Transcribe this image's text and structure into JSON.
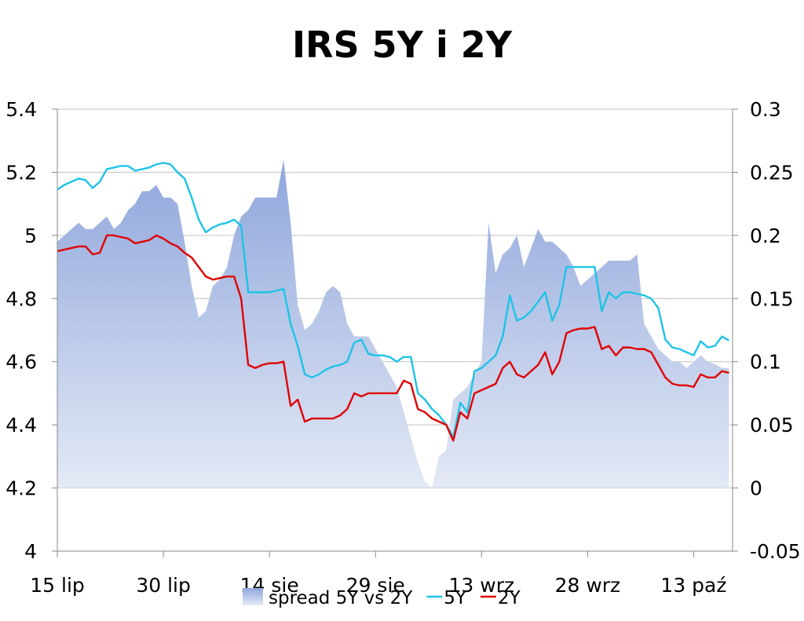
{
  "chart_data": {
    "type": "line",
    "title": "IRS 5Y i 2Y",
    "x_tick_labels": [
      "15 lip",
      "30 lip",
      "14 sie",
      "29 sie",
      "13 wrz",
      "28 wrz",
      "13 paź"
    ],
    "x_tick_days": [
      0,
      15,
      30,
      45,
      60,
      75,
      90
    ],
    "x_range_days": [
      0,
      95.5
    ],
    "y_left": {
      "min": 4,
      "max": 5.4,
      "step": 0.2,
      "tick_labels": [
        "4",
        "4.2",
        "4.4",
        "4.6",
        "4.8",
        "5",
        "5.2",
        "5.4"
      ]
    },
    "y_right": {
      "min": -0.05,
      "max": 0.3,
      "step": 0.05,
      "tick_labels": [
        "-0.05",
        "0",
        "0.05",
        "0.1",
        "0.15",
        "0.2",
        "0.25",
        "0.3"
      ]
    },
    "grid": "horizontal",
    "legend_position": "bottom",
    "x_days": [
      0,
      1,
      2,
      3,
      4,
      5,
      6,
      7,
      8,
      9,
      10,
      11,
      12,
      13,
      14,
      15,
      16,
      17,
      18,
      19,
      20,
      21,
      22,
      23,
      24,
      25,
      26,
      27,
      28,
      29,
      30,
      31,
      32,
      33,
      34,
      35,
      36,
      37,
      38,
      39,
      40,
      41,
      42,
      43,
      44,
      45,
      46,
      47,
      48,
      49,
      50,
      51,
      52,
      53,
      54,
      55,
      56,
      57,
      58,
      59,
      60,
      61,
      62,
      63,
      64,
      65,
      66,
      67,
      68,
      69,
      70,
      71,
      72,
      73,
      74,
      75,
      76,
      77,
      78,
      79,
      80,
      81,
      82,
      83,
      84,
      85,
      86,
      87,
      88,
      89,
      90,
      91,
      92,
      93,
      94,
      95
    ],
    "series": [
      {
        "name": "spread 5Y vs 2Y",
        "type": "area",
        "axis": "right",
        "color_top": "#8fa6dc",
        "color_bottom": "#e3e9f5",
        "values": [
          0.195,
          0.2,
          0.205,
          0.21,
          0.205,
          0.205,
          0.21,
          0.215,
          0.205,
          0.21,
          0.22,
          0.225,
          0.235,
          0.235,
          0.24,
          0.23,
          0.23,
          0.225,
          0.195,
          0.16,
          0.135,
          0.14,
          0.16,
          0.165,
          0.175,
          0.2,
          0.215,
          0.22,
          0.23,
          0.23,
          0.23,
          0.23,
          0.26,
          0.21,
          0.145,
          0.125,
          0.13,
          0.14,
          0.155,
          0.16,
          0.155,
          0.13,
          0.12,
          0.12,
          0.12,
          0.11,
          0.1,
          0.09,
          0.08,
          0.06,
          0.04,
          0.02,
          0.005,
          0.0,
          0.025,
          0.03,
          0.07,
          0.075,
          0.08,
          0.09,
          0.1,
          0.21,
          0.17,
          0.185,
          0.19,
          0.2,
          0.175,
          0.19,
          0.205,
          0.195,
          0.195,
          0.19,
          0.185,
          0.175,
          0.16,
          0.165,
          0.17,
          0.175,
          0.18,
          0.18,
          0.18,
          0.18,
          0.185,
          0.13,
          0.12,
          0.11,
          0.105,
          0.1,
          0.1,
          0.095,
          0.1,
          0.105,
          0.1,
          0.098,
          0.095,
          0.095
        ]
      },
      {
        "name": "5Y",
        "type": "line",
        "axis": "left",
        "color": "#1ec3e6",
        "values": [
          5.145,
          5.16,
          5.17,
          5.18,
          5.175,
          5.15,
          5.17,
          5.21,
          5.215,
          5.22,
          5.22,
          5.205,
          5.21,
          5.215,
          5.225,
          5.23,
          5.225,
          5.2,
          5.18,
          5.12,
          5.05,
          5.01,
          5.025,
          5.035,
          5.04,
          5.05,
          5.03,
          4.82,
          4.82,
          4.82,
          4.82,
          4.825,
          4.83,
          4.72,
          4.65,
          4.56,
          4.55,
          4.56,
          4.575,
          4.585,
          4.59,
          4.6,
          4.66,
          4.67,
          4.625,
          4.62,
          4.62,
          4.615,
          4.6,
          4.615,
          4.615,
          4.5,
          4.48,
          4.45,
          4.43,
          4.4,
          4.36,
          4.47,
          4.44,
          4.57,
          4.58,
          4.6,
          4.62,
          4.68,
          4.81,
          4.73,
          4.74,
          4.76,
          4.79,
          4.82,
          4.73,
          4.78,
          4.9,
          4.9,
          4.9,
          4.9,
          4.9,
          4.76,
          4.82,
          4.8,
          4.82,
          4.82,
          4.815,
          4.81,
          4.8,
          4.77,
          4.67,
          4.645,
          4.64,
          4.63,
          4.62,
          4.665,
          4.645,
          4.65,
          4.68,
          4.667
        ]
      },
      {
        "name": "2Y",
        "type": "line",
        "axis": "left",
        "color": "#e00000",
        "values": [
          4.95,
          4.955,
          4.96,
          4.965,
          4.965,
          4.94,
          4.945,
          5.0,
          5.0,
          4.995,
          4.99,
          4.975,
          4.98,
          4.985,
          5.0,
          4.99,
          4.975,
          4.965,
          4.945,
          4.93,
          4.9,
          4.87,
          4.86,
          4.865,
          4.87,
          4.87,
          4.8,
          4.59,
          4.58,
          4.59,
          4.595,
          4.595,
          4.6,
          4.46,
          4.48,
          4.41,
          4.42,
          4.42,
          4.42,
          4.42,
          4.43,
          4.45,
          4.5,
          4.49,
          4.5,
          4.5,
          4.5,
          4.5,
          4.5,
          4.54,
          4.53,
          4.45,
          4.44,
          4.42,
          4.41,
          4.4,
          4.35,
          4.44,
          4.42,
          4.5,
          4.51,
          4.52,
          4.53,
          4.58,
          4.6,
          4.56,
          4.55,
          4.57,
          4.59,
          4.63,
          4.56,
          4.6,
          4.69,
          4.7,
          4.705,
          4.705,
          4.71,
          4.64,
          4.65,
          4.62,
          4.645,
          4.645,
          4.64,
          4.64,
          4.63,
          4.59,
          4.55,
          4.53,
          4.525,
          4.525,
          4.52,
          4.56,
          4.55,
          4.55,
          4.57,
          4.565
        ]
      }
    ]
  }
}
